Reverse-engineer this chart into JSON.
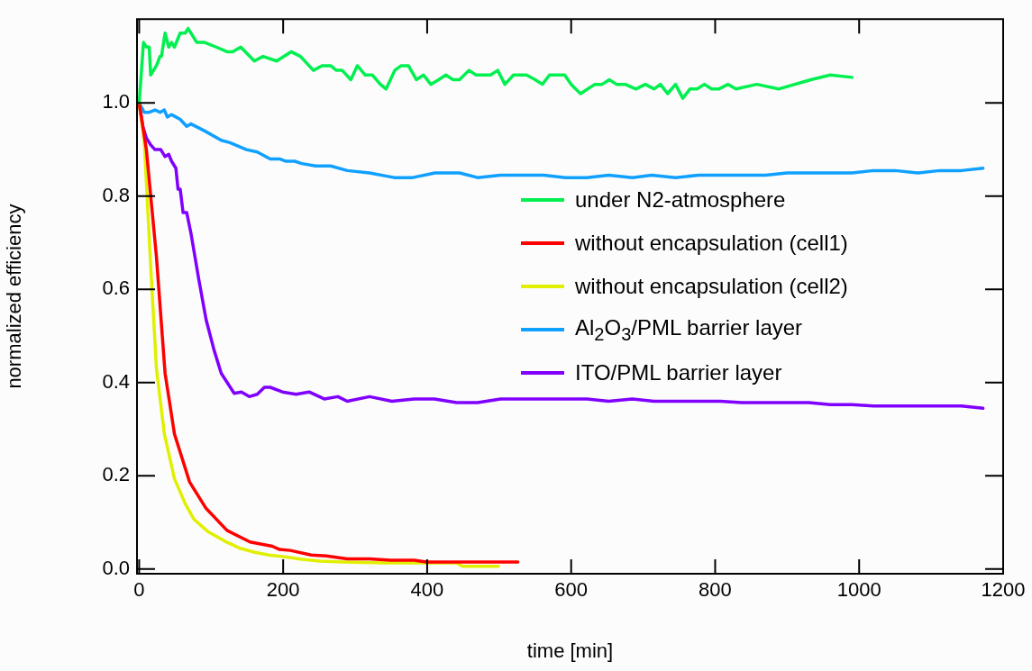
{
  "chart_data": {
    "type": "line",
    "xlabel": "time [min]",
    "ylabel": "normalized efficiency",
    "xlim": [
      -3,
      1200
    ],
    "ylim": [
      -0.01,
      1.18
    ],
    "xticks": [
      0,
      200,
      400,
      600,
      800,
      1000,
      1200
    ],
    "yticks": [
      {
        "value": 0,
        "label": "0.0"
      },
      {
        "value": 0.2,
        "label": "0.2"
      },
      {
        "value": 0.4,
        "label": "0.4"
      },
      {
        "value": 0.6,
        "label": "0.6"
      },
      {
        "value": 0.8,
        "label": "0.8"
      },
      {
        "value": 1,
        "label": "1.0"
      }
    ],
    "grid": false,
    "legend": "right",
    "marker": "none",
    "line_style": "solid",
    "series": [
      {
        "name": "under N2-atmosphere",
        "color": "#00f050",
        "x": [
          0,
          6,
          10,
          14,
          16,
          24,
          29,
          31,
          36,
          41,
          45,
          49,
          57,
          64,
          68,
          80,
          91,
          107,
          122,
          130,
          141,
          160,
          172,
          191,
          211,
          224,
          242,
          254,
          266,
          274,
          282,
          294,
          303,
          314,
          324,
          335,
          343,
          355,
          364,
          374,
          385,
          395,
          405,
          416,
          426,
          436,
          445,
          458,
          468,
          478,
          488,
          498,
          508,
          520,
          538,
          550,
          560,
          570,
          581,
          591,
          600,
          613,
          623,
          633,
          643,
          653,
          663,
          675,
          690,
          703,
          715,
          724,
          734,
          745,
          755,
          765,
          775,
          785,
          795,
          805,
          818,
          829,
          858,
          888,
          933,
          960,
          990
        ],
        "values": [
          1.0,
          1.13,
          1.12,
          1.12,
          1.06,
          1.08,
          1.1,
          1.1,
          1.15,
          1.12,
          1.13,
          1.12,
          1.15,
          1.15,
          1.16,
          1.13,
          1.13,
          1.12,
          1.11,
          1.11,
          1.12,
          1.09,
          1.1,
          1.09,
          1.11,
          1.1,
          1.07,
          1.08,
          1.08,
          1.07,
          1.07,
          1.05,
          1.08,
          1.06,
          1.06,
          1.04,
          1.03,
          1.07,
          1.08,
          1.08,
          1.05,
          1.06,
          1.04,
          1.05,
          1.06,
          1.05,
          1.05,
          1.07,
          1.06,
          1.06,
          1.06,
          1.07,
          1.04,
          1.06,
          1.06,
          1.05,
          1.04,
          1.06,
          1.06,
          1.06,
          1.04,
          1.02,
          1.03,
          1.04,
          1.04,
          1.05,
          1.04,
          1.04,
          1.03,
          1.04,
          1.03,
          1.04,
          1.02,
          1.04,
          1.01,
          1.03,
          1.03,
          1.04,
          1.03,
          1.03,
          1.04,
          1.03,
          1.04,
          1.03,
          1.05,
          1.06,
          1.055
        ]
      },
      {
        "name": "without encapsulation (cell1)",
        "color": "#ff0000",
        "x": [
          0,
          10,
          17,
          24,
          30,
          36,
          41,
          49,
          70,
          93,
          122,
          154,
          185,
          195,
          210,
          239,
          260,
          289,
          320,
          349,
          382,
          399,
          526
        ],
        "values": [
          1.0,
          0.9,
          0.785,
          0.67,
          0.545,
          0.42,
          0.37,
          0.29,
          0.187,
          0.13,
          0.083,
          0.058,
          0.049,
          0.042,
          0.04,
          0.03,
          0.028,
          0.022,
          0.022,
          0.019,
          0.019,
          0.015,
          0.015
        ]
      },
      {
        "name": "without encapsulation (cell2)",
        "color": "#e0f000",
        "x": [
          0,
          7,
          11,
          16,
          24,
          35,
          49,
          64,
          76,
          95,
          120,
          141,
          161,
          180,
          204,
          226,
          251,
          283,
          341,
          441,
          449,
          499
        ],
        "values": [
          1.0,
          0.92,
          0.8,
          0.65,
          0.43,
          0.29,
          0.194,
          0.14,
          0.107,
          0.081,
          0.059,
          0.044,
          0.036,
          0.03,
          0.026,
          0.021,
          0.017,
          0.015,
          0.013,
          0.013,
          0.006,
          0.006
        ]
      },
      {
        "name": "Al$_{2}$O$_{3}$/PML barrier layer",
        "color": "#10a0ff",
        "x": [
          0,
          7,
          14,
          22,
          29,
          35,
          39,
          45,
          51,
          57,
          66,
          72,
          91,
          114,
          126,
          149,
          164,
          182,
          195,
          204,
          216,
          226,
          245,
          266,
          289,
          320,
          354,
          380,
          411,
          445,
          470,
          502,
          562,
          592,
          622,
          652,
          685,
          712,
          745,
          777,
          870,
          900,
          990,
          1020,
          1050,
          1082,
          1112,
          1142,
          1172
        ],
        "values": [
          1.0,
          0.98,
          0.98,
          0.985,
          0.98,
          0.985,
          0.97,
          0.975,
          0.97,
          0.965,
          0.95,
          0.955,
          0.94,
          0.92,
          0.915,
          0.9,
          0.895,
          0.88,
          0.88,
          0.875,
          0.875,
          0.87,
          0.865,
          0.865,
          0.855,
          0.85,
          0.84,
          0.84,
          0.85,
          0.85,
          0.84,
          0.845,
          0.845,
          0.84,
          0.84,
          0.845,
          0.84,
          0.845,
          0.84,
          0.845,
          0.845,
          0.85,
          0.85,
          0.855,
          0.855,
          0.85,
          0.855,
          0.855,
          0.86
        ]
      },
      {
        "name": "ITO/PML barrier layer",
        "color": "#8000ff",
        "x": [
          0,
          5,
          10,
          16,
          22,
          30,
          36,
          41,
          45,
          51,
          54,
          57,
          61,
          66,
          72,
          83,
          93,
          104,
          114,
          132,
          142,
          153,
          164,
          174,
          182,
          199,
          218,
          236,
          257,
          276,
          289,
          320,
          351,
          382,
          410,
          441,
          470,
          502,
          622,
          652,
          685,
          715,
          807,
          837,
          930,
          960,
          990,
          1020,
          1142,
          1172
        ],
        "values": [
          1.0,
          0.95,
          0.925,
          0.91,
          0.9,
          0.9,
          0.885,
          0.89,
          0.875,
          0.86,
          0.815,
          0.815,
          0.765,
          0.765,
          0.72,
          0.62,
          0.535,
          0.47,
          0.42,
          0.377,
          0.38,
          0.37,
          0.375,
          0.39,
          0.39,
          0.38,
          0.375,
          0.38,
          0.365,
          0.37,
          0.36,
          0.37,
          0.36,
          0.365,
          0.365,
          0.357,
          0.357,
          0.365,
          0.365,
          0.36,
          0.365,
          0.36,
          0.36,
          0.357,
          0.357,
          0.353,
          0.353,
          0.35,
          0.35,
          0.345
        ]
      }
    ]
  }
}
